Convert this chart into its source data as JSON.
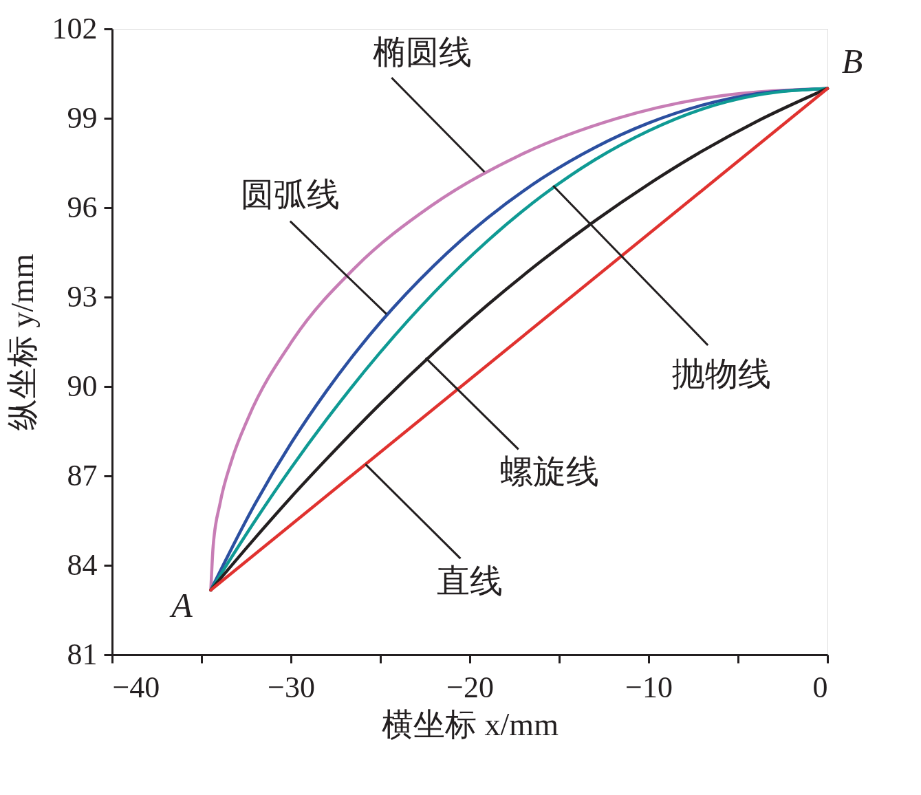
{
  "chart_data": {
    "type": "line",
    "xlabel": "横坐标 x/mm",
    "ylabel": "纵坐标 y/mm",
    "xlim": [
      -40,
      0
    ],
    "ylim": [
      81,
      102
    ],
    "xticks": [
      -40,
      {
        "value": -35,
        "label": null
      },
      -30,
      {
        "value": -25,
        "label": null
      },
      -20,
      {
        "value": -15,
        "label": null
      },
      -10,
      {
        "value": -5,
        "label": null
      },
      0
    ],
    "yticks": [
      81,
      84,
      87,
      90,
      93,
      96,
      99,
      102
    ],
    "grid": false,
    "marker": "none",
    "line_style": "solid",
    "series": [
      {
        "color": "#c77db5",
        "x": [
          -34.48,
          -34.35,
          -33.96,
          -33.31,
          -32.4,
          -29.86,
          -26.41,
          -22.16,
          -17.24,
          -11.79,
          -5.99,
          0
        ],
        "values": [
          83.17,
          84.64,
          86.09,
          87.53,
          88.93,
          91.59,
          93.99,
          96.06,
          97.75,
          98.99,
          99.75,
          100
        ]
      },
      {
        "color": "#2b4fa0",
        "x": [
          -34.48,
          -32,
          -30,
          -28,
          -25,
          -22,
          -19,
          -16,
          -13,
          -10,
          -7,
          -4,
          0
        ],
        "values": [
          83.17,
          86.07,
          88.09,
          89.86,
          92.15,
          94.06,
          95.66,
          96.97,
          98.02,
          98.84,
          99.44,
          99.82,
          100
        ]
      },
      {
        "color": "#0f9a94",
        "x": [
          -34.48,
          -32,
          -30,
          -28,
          -25,
          -22,
          -19,
          -16,
          -13,
          -10,
          -7,
          -4,
          0
        ],
        "values": [
          83.17,
          85.5,
          87.26,
          88.9,
          91.15,
          93.15,
          94.89,
          96.38,
          97.61,
          98.58,
          99.31,
          99.77,
          100
        ]
      },
      {
        "color": "#231f20",
        "x": [
          -34.48,
          -32,
          -30,
          -28,
          -25,
          -22,
          -19,
          -16,
          -13,
          -10,
          -7,
          -4,
          0
        ],
        "values": [
          83.17,
          84.92,
          86.28,
          87.57,
          89.42,
          91.14,
          92.74,
          94.21,
          95.56,
          96.79,
          97.9,
          98.88,
          100
        ]
      },
      {
        "color": "#e0322f",
        "x": [
          -34.48,
          0
        ],
        "values": [
          83.17,
          100
        ]
      }
    ],
    "annotations": [
      {
        "text": "椭圆线",
        "x": -19.18,
        "y": 97.2
      },
      {
        "text": "圆弧线",
        "x": -24.66,
        "y": 92.43
      },
      {
        "text": "抛物线",
        "x": -15.34,
        "y": 96.74
      },
      {
        "text": "螺旋线",
        "x": -22.47,
        "y": 90.96
      },
      {
        "text": "直线",
        "x": -25.83,
        "y": 87.39
      },
      {
        "text": "A",
        "x": -34.48,
        "y": 83.17
      },
      {
        "text": "B",
        "x": 0,
        "y": 100
      }
    ]
  }
}
